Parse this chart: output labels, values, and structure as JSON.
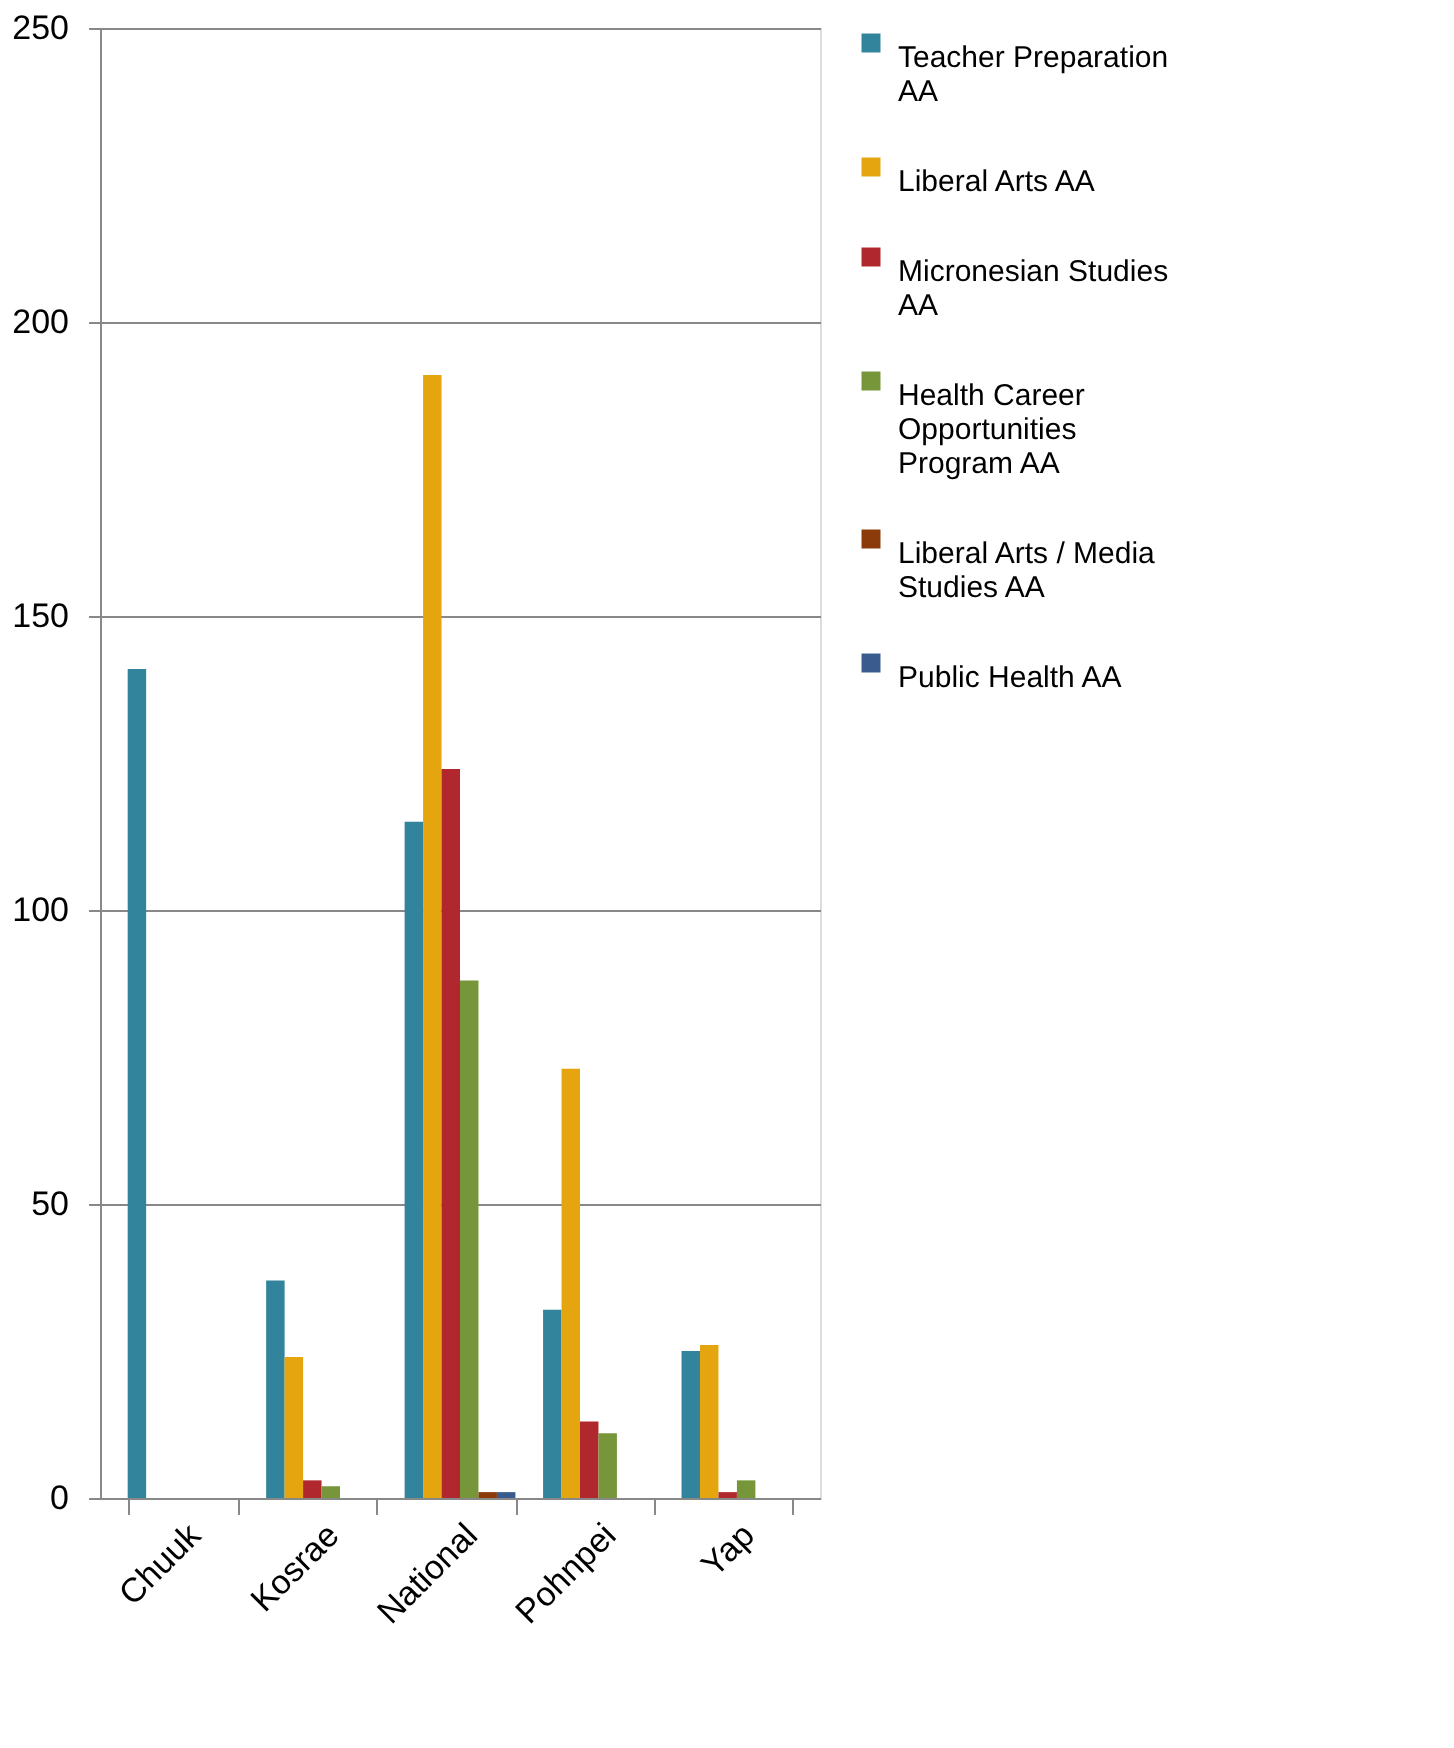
{
  "chart_data": {
    "type": "bar",
    "categories": [
      "Chuuk",
      "Kosrae",
      "National",
      "Pohnpei",
      "Yap"
    ],
    "series": [
      {
        "name": "Teacher Preparation AA",
        "color": "#31849b",
        "values": [
          141,
          37,
          115,
          32,
          25
        ]
      },
      {
        "name": "Liberal Arts AA",
        "color": "#e5a50f",
        "values": [
          null,
          24,
          191,
          73,
          26
        ]
      },
      {
        "name": "Micronesian Studies AA",
        "color": "#b0282d",
        "values": [
          null,
          3,
          124,
          13,
          1
        ]
      },
      {
        "name": "Health Career Opportunities Program AA",
        "color": "#77963a",
        "values": [
          null,
          2,
          88,
          11,
          3
        ]
      },
      {
        "name": "Liberal Arts / Media Studies AA",
        "color": "#8b3b0a",
        "values": [
          null,
          null,
          1,
          null,
          null
        ]
      },
      {
        "name": "Public Health AA",
        "color": "#3a5b8e",
        "values": [
          null,
          null,
          1,
          null,
          null
        ]
      }
    ],
    "ylim": [
      0,
      250
    ],
    "yticks": [
      0,
      50,
      100,
      150,
      200,
      250
    ],
    "grid": "y",
    "legend": "right"
  }
}
